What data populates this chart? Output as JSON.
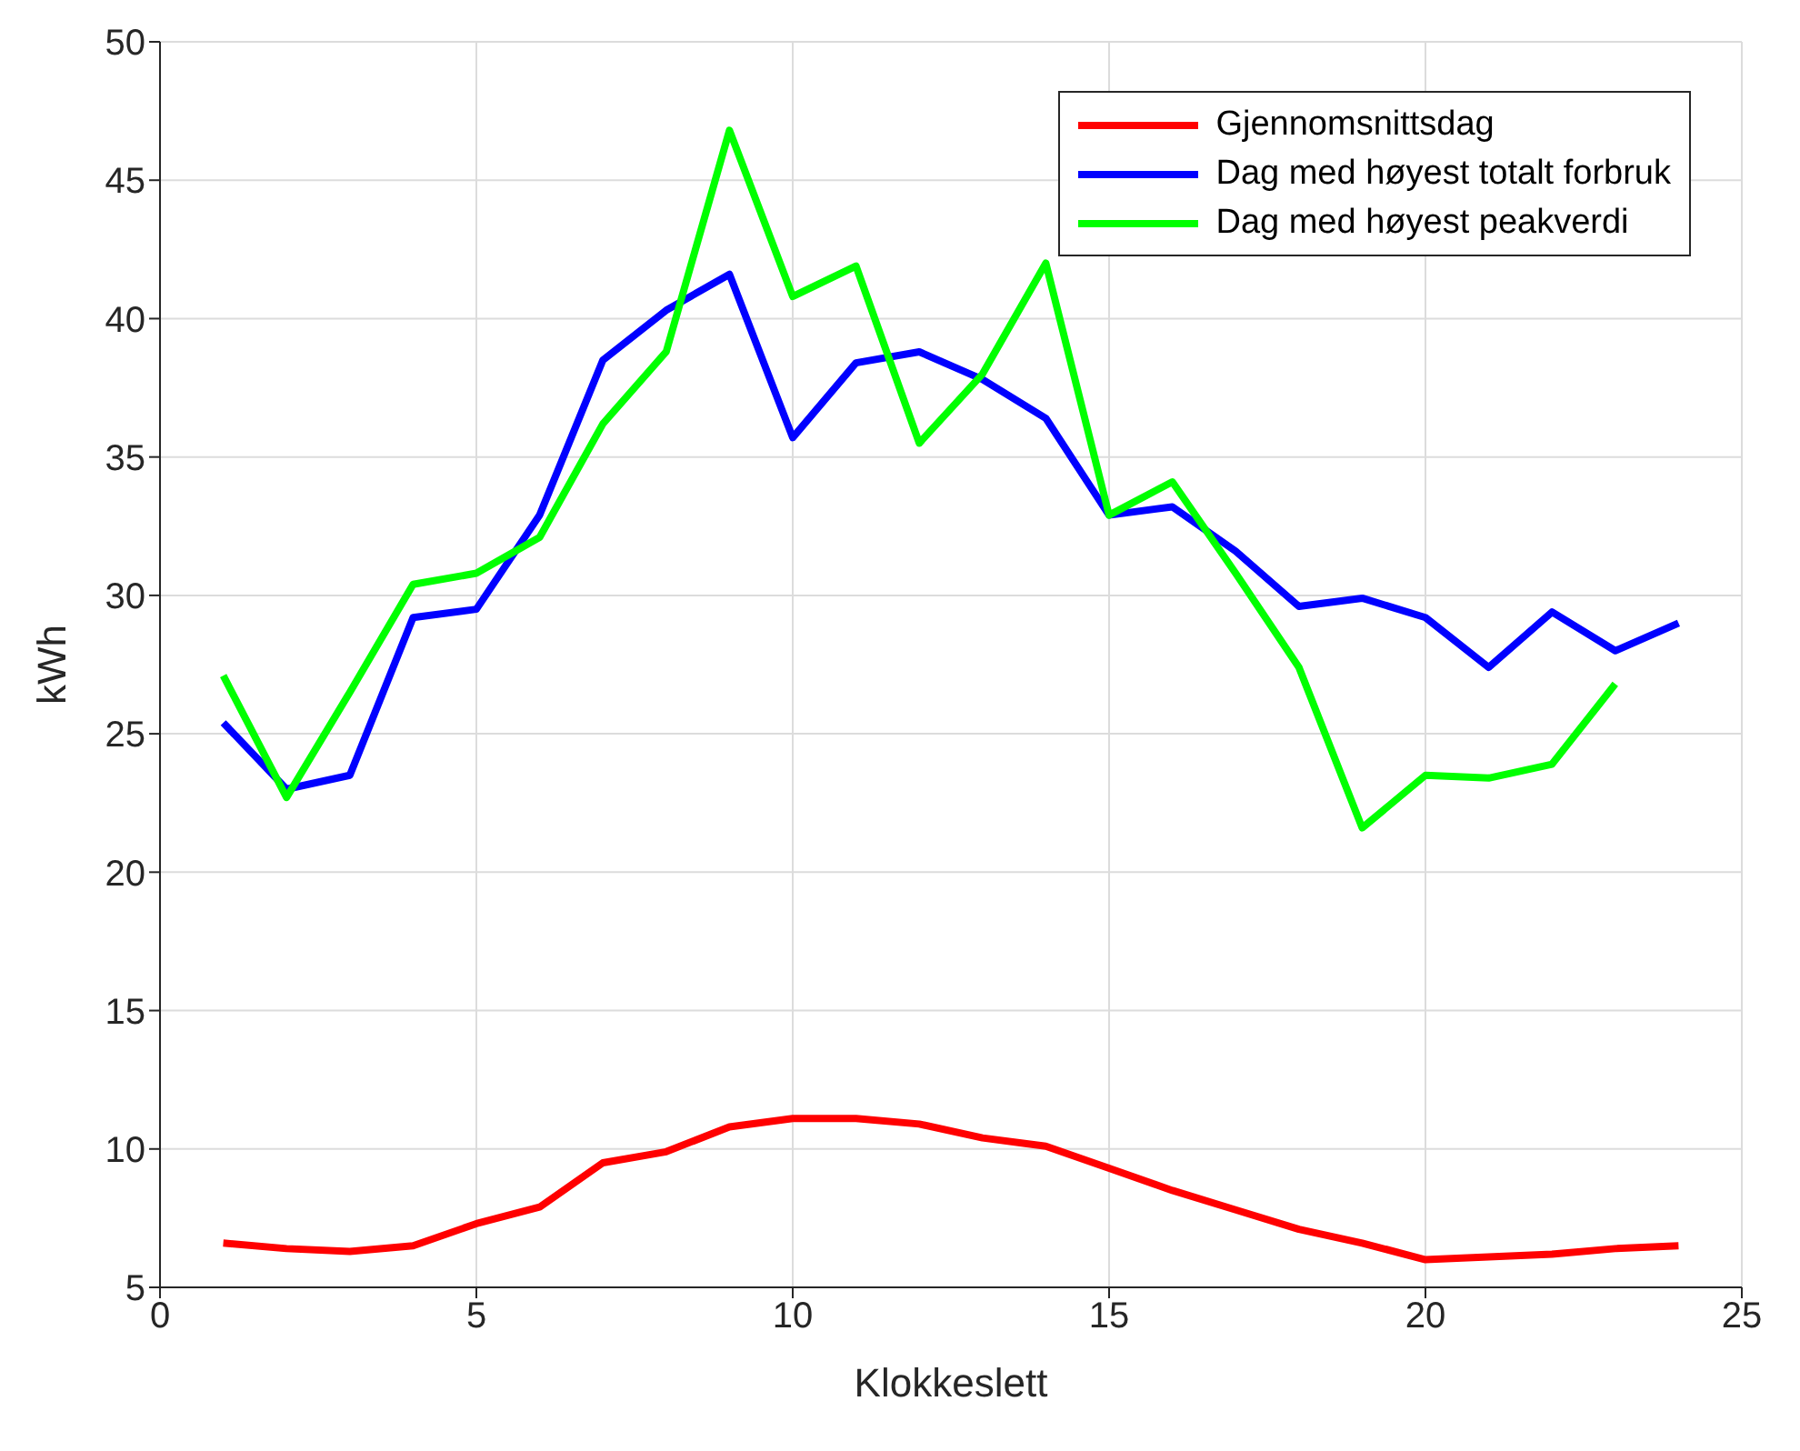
{
  "chart_data": {
    "type": "line",
    "xlabel": "Klokkeslett",
    "ylabel": "kWh",
    "x": [
      1,
      2,
      3,
      4,
      5,
      6,
      7,
      8,
      9,
      10,
      11,
      12,
      13,
      14,
      15,
      16,
      17,
      18,
      19,
      20,
      21,
      22,
      23,
      24
    ],
    "xlim": [
      0,
      25
    ],
    "xticks": [
      0,
      5,
      10,
      15,
      20,
      25
    ],
    "ylim": [
      5,
      50
    ],
    "yticks": [
      5,
      10,
      15,
      20,
      25,
      30,
      35,
      40,
      45,
      50
    ],
    "grid": true,
    "legend": "top right",
    "marker": "none",
    "line_style": "solid",
    "series": [
      {
        "name": "Gjennomsnittsdag",
        "color": "#ff0000",
        "values": [
          6.6,
          6.4,
          6.3,
          6.5,
          7.3,
          7.9,
          9.5,
          9.9,
          10.8,
          11.1,
          11.1,
          10.9,
          10.4,
          10.1,
          9.3,
          8.5,
          7.8,
          7.1,
          6.6,
          6.0,
          6.1,
          6.2,
          6.4,
          6.5
        ]
      },
      {
        "name": "Dag med høyest totalt forbruk",
        "color": "#0000ff",
        "values": [
          25.4,
          23.0,
          23.5,
          29.2,
          29.5,
          32.9,
          38.5,
          40.3,
          41.6,
          35.7,
          38.4,
          38.8,
          37.8,
          36.4,
          32.9,
          33.2,
          31.6,
          29.6,
          29.9,
          29.2,
          27.4,
          29.4,
          28.0,
          29.0
        ]
      },
      {
        "name": "Dag med høyest peakverdi",
        "color": "#00ff00",
        "values": [
          27.1,
          22.7,
          26.5,
          30.4,
          30.8,
          32.1,
          36.2,
          38.8,
          46.8,
          40.8,
          41.9,
          35.5,
          38.0,
          42.0,
          32.9,
          34.1,
          30.8,
          27.4,
          21.6,
          23.5,
          23.4,
          23.9,
          26.8,
          null
        ]
      }
    ]
  }
}
